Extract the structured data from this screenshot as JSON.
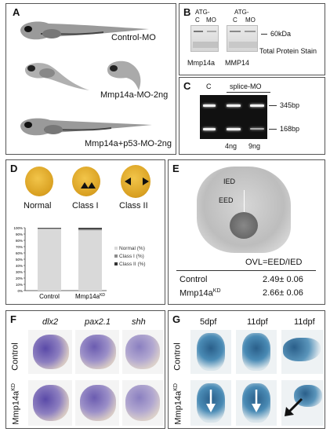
{
  "panelA": {
    "label": "A",
    "captions": [
      "Control-MO",
      "Mmp14a-MO-2ng",
      "Mmp14a+p53-MO-2ng"
    ]
  },
  "panelB": {
    "label": "B",
    "atg_left": "ATG-",
    "mo_left": "MO",
    "c_left": "C",
    "atg_right": "ATG-",
    "mo_right": "MO",
    "c_right": "C",
    "size": "60kDa",
    "stain": "Total Protein Stain",
    "lane_left": "Mmp14a",
    "lane_right": "MMP14"
  },
  "panelC": {
    "label": "C",
    "c": "C",
    "splice": "splice-MO",
    "band_top": "345bp",
    "band_bottom": "168bp",
    "dose1": "4ng",
    "dose2": "9ng"
  },
  "panelD": {
    "label": "D",
    "classes": [
      "Normal",
      "Class I",
      "Class II"
    ],
    "chart_data": {
      "type": "bar",
      "stacked": true,
      "categories": [
        "Control",
        "Mmp14aᴷᴰ"
      ],
      "category_labels": [
        {
          "base": "Control",
          "sup": ""
        },
        {
          "base": "Mmp14a",
          "sup": "KD"
        }
      ],
      "series": [
        {
          "name": "Normal (%)",
          "values": [
            98,
            96
          ],
          "color": "#d9d9d9"
        },
        {
          "name": "Class I (%)",
          "values": [
            1,
            2
          ],
          "color": "#8c8c8c"
        },
        {
          "name": "Class II (%)",
          "values": [
            1,
            2
          ],
          "color": "#333333"
        }
      ],
      "yticks": [
        "100%",
        "90%",
        "80%",
        "70%",
        "60%",
        "50%",
        "40%",
        "30%",
        "20%",
        "10%",
        "0%"
      ],
      "ylim": [
        0,
        100
      ],
      "legend_position": "right"
    }
  },
  "panelE": {
    "label": "E",
    "ied": "IED",
    "eed": "EED",
    "formula": "OVL=EED/IED",
    "rows": [
      {
        "name": "Control",
        "sup": "",
        "value": "2.49± 0.06"
      },
      {
        "name": "Mmp14a",
        "sup": "KD",
        "value": "2.66± 0.06"
      }
    ]
  },
  "panelF": {
    "label": "F",
    "genes": [
      "dlx2",
      "pax2.1",
      "shh"
    ],
    "row1": "Control",
    "row2_base": "Mmp14a",
    "row2_sup": "KD"
  },
  "panelG": {
    "label": "G",
    "stages": [
      "5dpf",
      "11dpf",
      "11dpf"
    ],
    "row1": "Control",
    "row2_base": "Mmp14a",
    "row2_sup": "KD"
  }
}
